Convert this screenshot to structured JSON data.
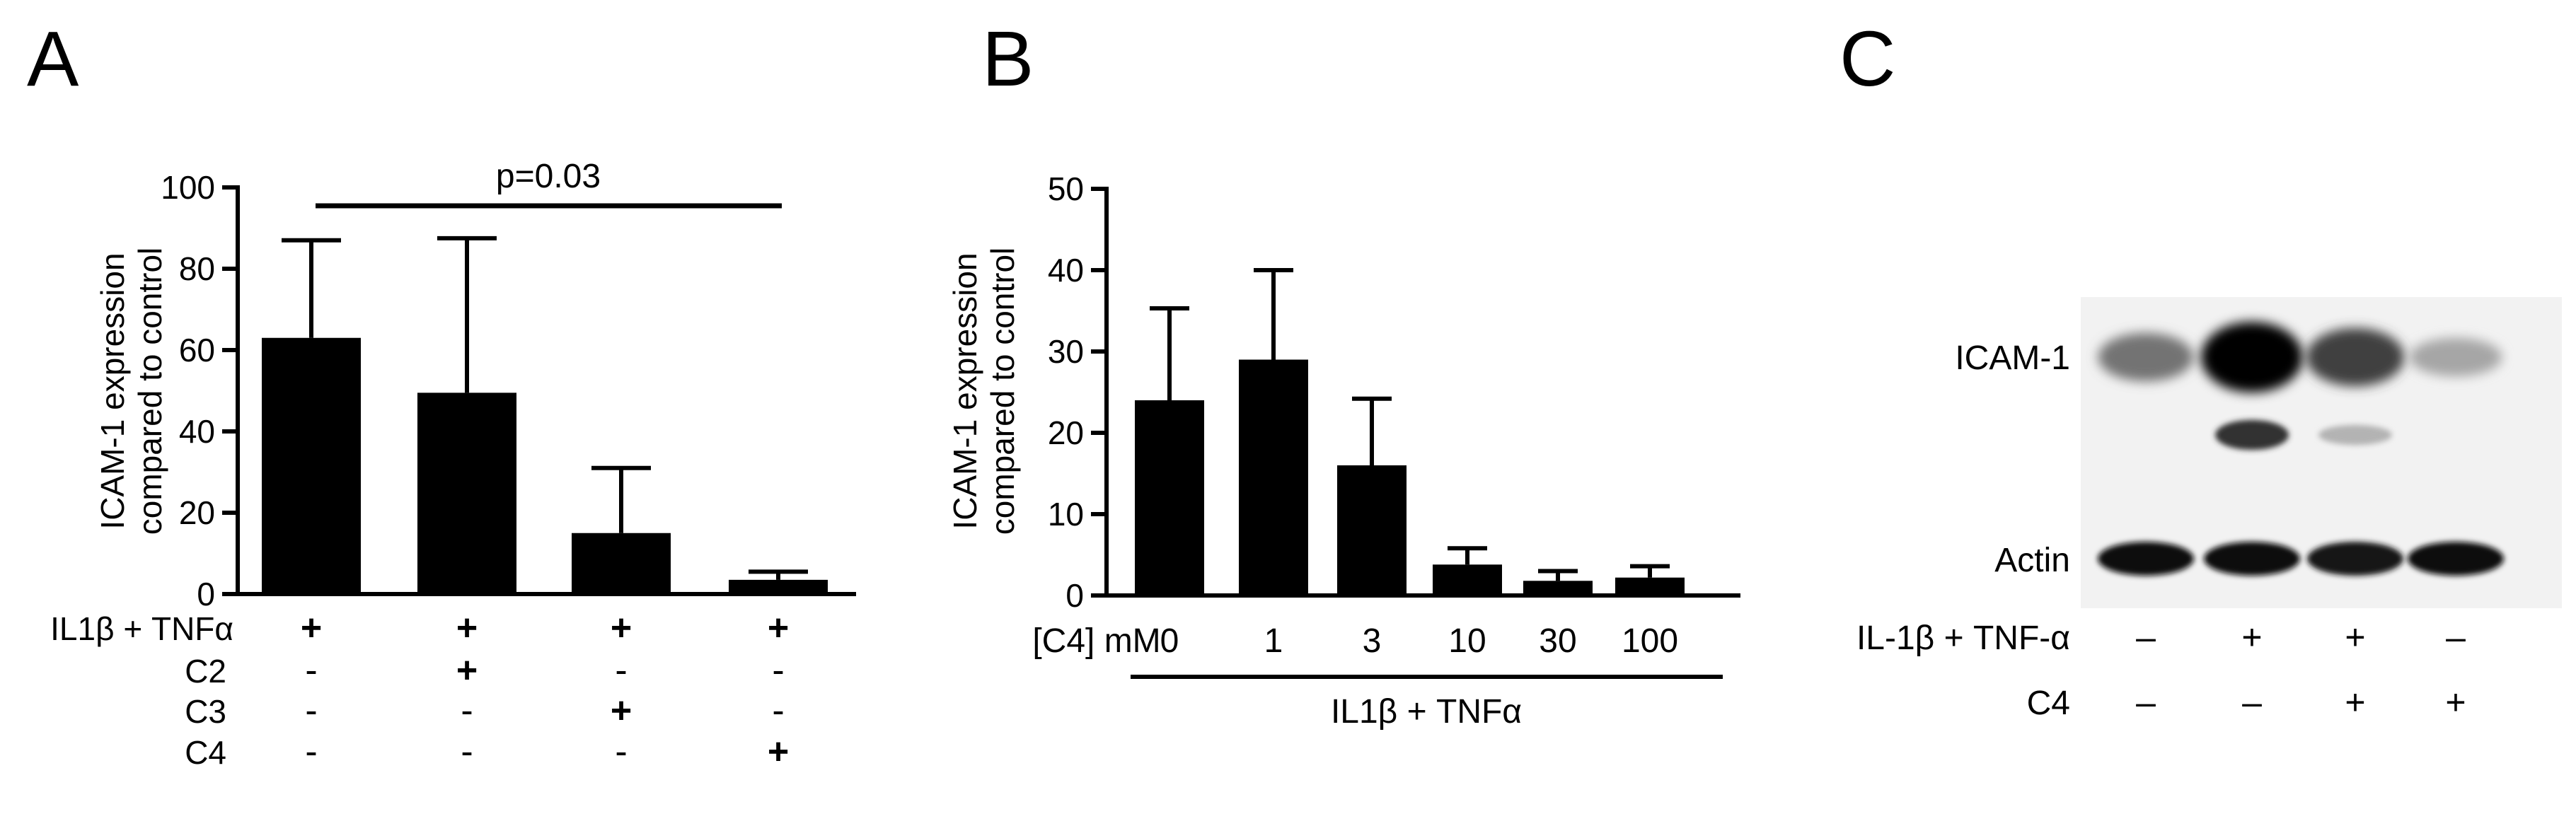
{
  "panels": {
    "a": "A",
    "b": "B",
    "c": "C"
  },
  "chart_data": [
    {
      "type": "bar",
      "panel": "A",
      "ylabel": [
        "ICAM-1 expression",
        "compared to control"
      ],
      "ylim": [
        0,
        100
      ],
      "yticks": [
        "0",
        "20",
        "40",
        "60",
        "80",
        "100"
      ],
      "values": [
        63,
        49.5,
        15,
        3.5
      ],
      "errors": [
        24,
        38,
        16,
        2
      ],
      "bar_color": "#000000",
      "significance": {
        "text": "p=0.03",
        "from": 0,
        "to": 3
      },
      "treatment_rows": [
        {
          "label": "IL1β + TNFα",
          "marks": [
            "+",
            "+",
            "+",
            "+"
          ]
        },
        {
          "label": "C2",
          "marks": [
            "-",
            "+",
            "-",
            "-"
          ]
        },
        {
          "label": "C3",
          "marks": [
            "-",
            "-",
            "+",
            "-"
          ]
        },
        {
          "label": "C4",
          "marks": [
            "-",
            "-",
            "-",
            "+"
          ]
        }
      ]
    },
    {
      "type": "bar",
      "panel": "B",
      "ylabel": [
        "ICAM-1 expression",
        "compared to control"
      ],
      "ylim": [
        0,
        50
      ],
      "yticks": [
        "0",
        "10",
        "20",
        "30",
        "40",
        "50"
      ],
      "x_prefix": "[C4] mM",
      "categories": [
        "0",
        "1",
        "3",
        "10",
        "30",
        "100"
      ],
      "values": [
        24,
        29,
        16,
        3.8,
        1.8,
        2.2
      ],
      "errors": [
        11.3,
        11,
        8.2,
        2,
        1.2,
        1.4
      ],
      "bar_color": "#000000",
      "group_label": "IL1β + TNFα"
    },
    {
      "type": "western_blot",
      "panel": "C",
      "bands": [
        "ICAM-1",
        "Actin"
      ],
      "lane_intensity_icam": [
        0.55,
        1.0,
        0.75,
        0.35
      ],
      "lane_intensity_lower_band": [
        0,
        0.8,
        0.3,
        0
      ],
      "lane_intensity_actin": [
        0.95,
        0.95,
        0.9,
        0.95
      ],
      "treatment_rows": [
        {
          "label": "IL-1β + TNF-α",
          "marks": [
            "–",
            "+",
            "+",
            "–"
          ]
        },
        {
          "label": "C4",
          "marks": [
            "–",
            "–",
            "+",
            "+"
          ]
        }
      ]
    }
  ]
}
